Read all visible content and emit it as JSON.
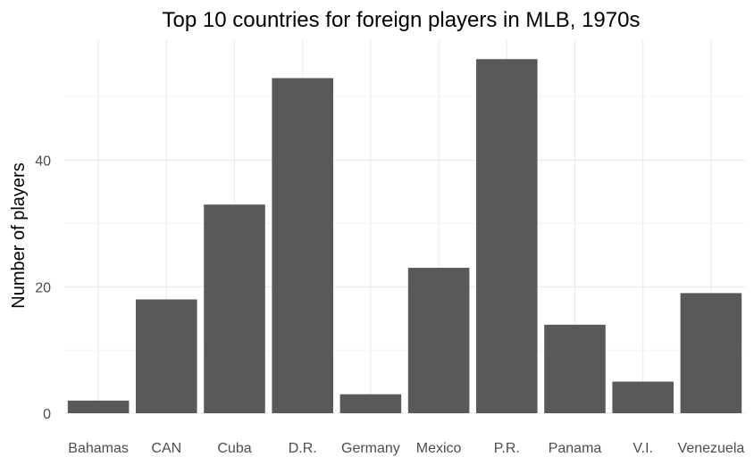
{
  "chart_data": {
    "type": "bar",
    "title": "Top 10 countries for foreign players in MLB, 1970s",
    "xlabel": "",
    "ylabel": "Number of players",
    "categories": [
      "Bahamas",
      "CAN",
      "Cuba",
      "D.R.",
      "Germany",
      "Mexico",
      "P.R.",
      "Panama",
      "V.I.",
      "Venezuela"
    ],
    "values": [
      2,
      18,
      33,
      53,
      3,
      23,
      56,
      14,
      5,
      19
    ],
    "ylim": [
      0,
      59
    ],
    "yticks": [
      0,
      20,
      40
    ],
    "ytick_labels": [
      "0",
      "20",
      "40"
    ],
    "grid": true,
    "legend": "none",
    "colors": {
      "bar": "#595959",
      "grid_major": "#ebebeb",
      "grid_minor": "#f2f2f2",
      "tick_text": "#4d4d4d",
      "title_text": "#000000"
    }
  }
}
